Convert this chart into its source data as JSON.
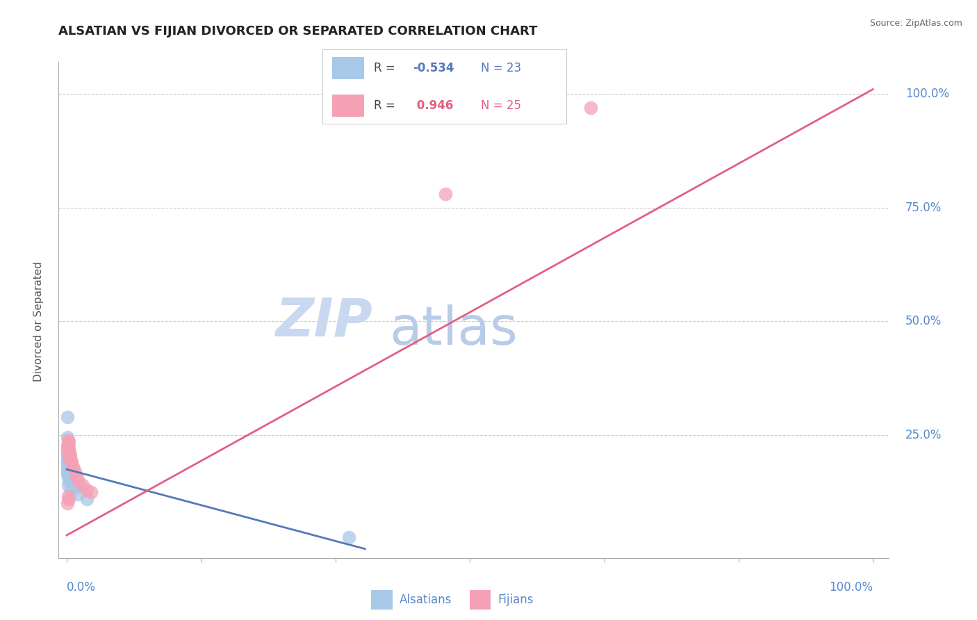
{
  "title": "ALSATIAN VS FIJIAN DIVORCED OR SEPARATED CORRELATION CHART",
  "source": "Source: ZipAtlas.com",
  "ylabel": "Divorced or Separated",
  "legend_alsatian_r": "-0.534",
  "legend_alsatian_n": "23",
  "legend_fijian_r": "0.946",
  "legend_fijian_n": "25",
  "alsatian_color": "#a8c8e8",
  "fijian_color": "#f5a0b5",
  "alsatian_line_color": "#5577bb",
  "fijian_line_color": "#e06080",
  "title_color": "#222222",
  "axis_label_color": "#5588cc",
  "watermark_zip_color": "#c8d8f0",
  "watermark_atlas_color": "#b8cce8",
  "alsatian_points": [
    [
      0.05,
      29.0
    ],
    [
      0.05,
      24.5
    ],
    [
      0.1,
      22.5
    ],
    [
      0.15,
      22.0
    ],
    [
      0.2,
      21.5
    ],
    [
      0.1,
      21.0
    ],
    [
      0.05,
      20.5
    ],
    [
      0.15,
      20.0
    ],
    [
      0.05,
      19.5
    ],
    [
      0.1,
      19.0
    ],
    [
      0.05,
      18.5
    ],
    [
      0.1,
      18.0
    ],
    [
      0.15,
      17.5
    ],
    [
      0.05,
      17.0
    ],
    [
      0.1,
      16.5
    ],
    [
      0.2,
      16.0
    ],
    [
      0.3,
      15.0
    ],
    [
      0.2,
      14.0
    ],
    [
      0.5,
      13.0
    ],
    [
      1.0,
      13.5
    ],
    [
      1.5,
      12.0
    ],
    [
      2.5,
      11.0
    ],
    [
      35.0,
      2.5
    ]
  ],
  "fijian_points": [
    [
      0.1,
      22.0
    ],
    [
      0.15,
      24.0
    ],
    [
      0.2,
      23.0
    ],
    [
      0.25,
      23.5
    ],
    [
      0.15,
      22.5
    ],
    [
      0.2,
      22.0
    ],
    [
      0.25,
      21.5
    ],
    [
      0.3,
      22.0
    ],
    [
      0.35,
      21.0
    ],
    [
      0.4,
      20.5
    ],
    [
      0.3,
      20.0
    ],
    [
      0.5,
      19.5
    ],
    [
      0.6,
      19.0
    ],
    [
      0.8,
      18.0
    ],
    [
      1.0,
      17.0
    ],
    [
      1.2,
      16.0
    ],
    [
      1.5,
      15.0
    ],
    [
      2.0,
      14.0
    ],
    [
      2.5,
      13.0
    ],
    [
      3.0,
      12.5
    ],
    [
      0.2,
      11.5
    ],
    [
      0.3,
      11.0
    ],
    [
      65.0,
      97.0
    ],
    [
      47.0,
      78.0
    ],
    [
      0.1,
      10.0
    ]
  ],
  "blue_line": {
    "x0": 0.0,
    "y0": 17.5,
    "x1": 37.0,
    "y1": 0.0
  },
  "pink_line": {
    "x0": 0.0,
    "y0": 3.0,
    "x1": 100.0,
    "y1": 101.0
  },
  "xlim": [
    -1.0,
    102.0
  ],
  "ylim": [
    -2.0,
    107.0
  ],
  "xaxis_pct_positions": [
    0.0,
    16.67,
    33.33,
    50.0,
    66.67,
    83.33,
    100.0
  ],
  "yaxis_pct_labels": [
    {
      "value": 25.0,
      "label": "25.0%"
    },
    {
      "value": 50.0,
      "label": "50.0%"
    },
    {
      "value": 75.0,
      "label": "75.0%"
    },
    {
      "value": 100.0,
      "label": "100.0%"
    }
  ]
}
